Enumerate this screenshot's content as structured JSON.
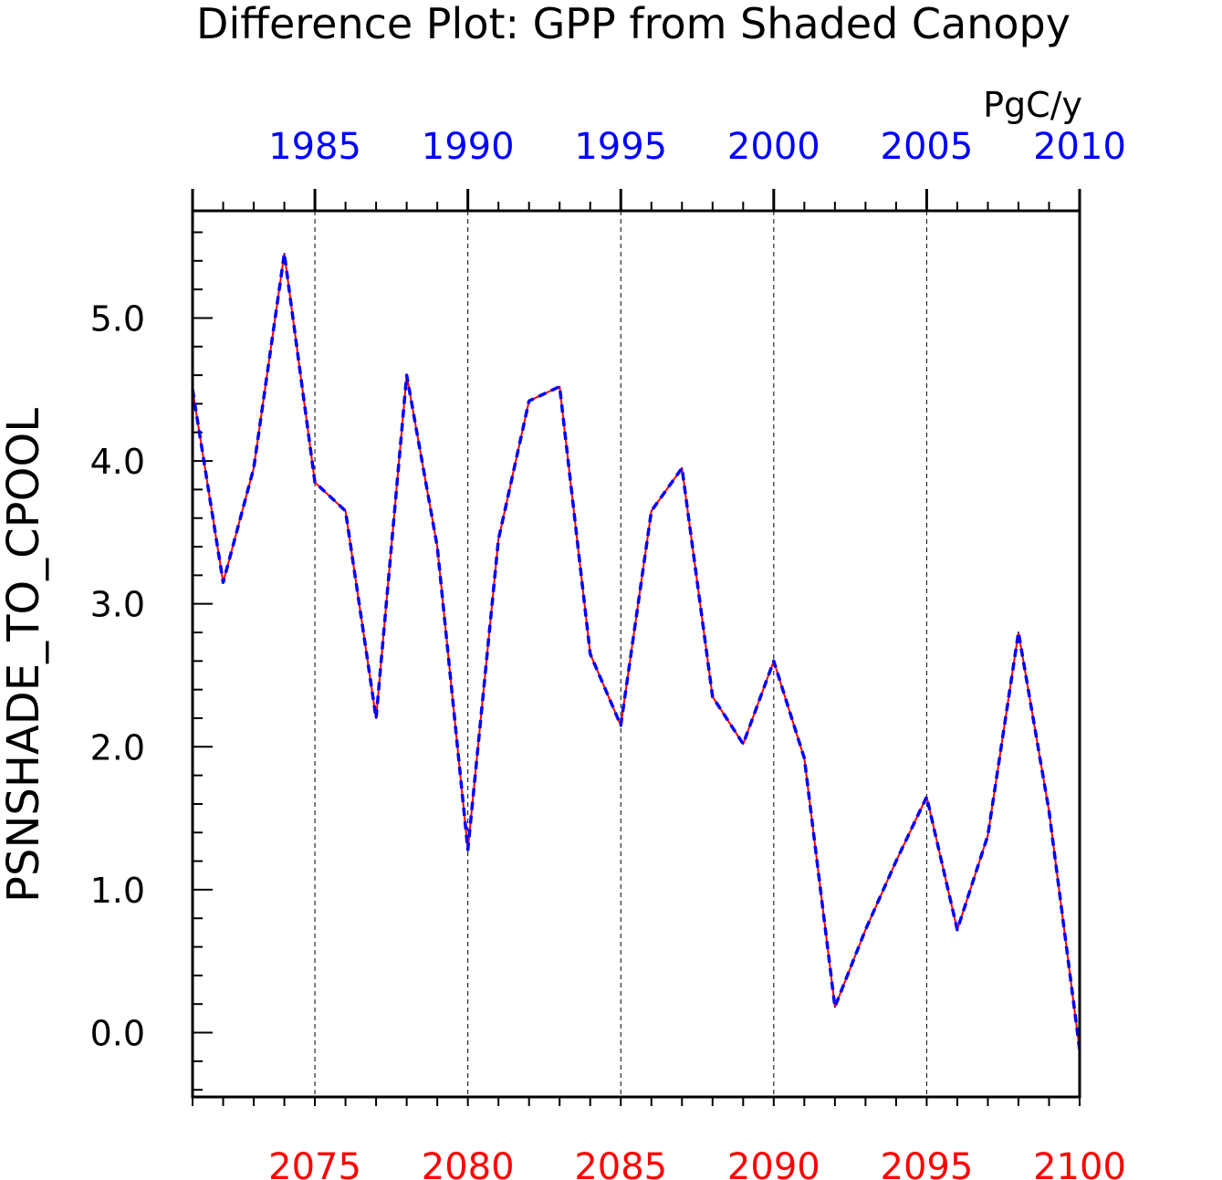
{
  "chart_data": {
    "type": "line",
    "title": "Difference Plot: GPP from Shaded Canopy",
    "units": "PgC/y",
    "ylabel": "PSNSHADE_TO_CPOOL",
    "ylim": [
      -0.45,
      5.75
    ],
    "y_ticks": [
      "0.0",
      "1.0",
      "2.0",
      "3.0",
      "4.0",
      "5.0"
    ],
    "x_bottom": {
      "range": [
        2071,
        2100
      ],
      "tick_labels": [
        "2075",
        "2080",
        "2085",
        "2090",
        "2095",
        "2100"
      ],
      "color": "#ff0000"
    },
    "x_top": {
      "range": [
        1981,
        2010
      ],
      "tick_labels": [
        "1985",
        "1990",
        "1995",
        "2000",
        "2005",
        "2010"
      ],
      "color": "#0000ff"
    },
    "grid": "dashed vertical lines at labelled bottom years",
    "series": [
      {
        "color": "#ff0000",
        "style": "solid",
        "x": [
          2071,
          2072,
          2073,
          2074,
          2075,
          2076,
          2077,
          2078,
          2079,
          2080,
          2081,
          2082,
          2083,
          2084,
          2085,
          2086,
          2087,
          2088,
          2089,
          2090,
          2091,
          2092,
          2093,
          2094,
          2095,
          2096,
          2097,
          2098,
          2099,
          2100
        ],
        "values": [
          4.5,
          3.15,
          3.95,
          5.45,
          3.85,
          3.65,
          2.2,
          4.6,
          3.4,
          1.28,
          3.45,
          4.42,
          4.52,
          2.65,
          2.15,
          3.65,
          3.95,
          2.35,
          2.02,
          2.6,
          1.92,
          0.18,
          0.72,
          1.2,
          1.65,
          0.72,
          1.38,
          2.8,
          1.55,
          -0.12
        ]
      },
      {
        "color": "#0000ff",
        "style": "dashed",
        "x": [
          1981,
          1982,
          1983,
          1984,
          1985,
          1986,
          1987,
          1988,
          1989,
          1990,
          1991,
          1992,
          1993,
          1994,
          1995,
          1996,
          1997,
          1998,
          1999,
          2000,
          2001,
          2002,
          2003,
          2004,
          2005,
          2006,
          2007,
          2008,
          2009,
          2010
        ],
        "values": [
          4.5,
          3.15,
          3.95,
          5.45,
          3.85,
          3.65,
          2.2,
          4.6,
          3.4,
          1.28,
          3.45,
          4.42,
          4.52,
          2.65,
          2.15,
          3.65,
          3.95,
          2.35,
          2.02,
          2.6,
          1.92,
          0.18,
          0.72,
          1.2,
          1.65,
          0.72,
          1.38,
          2.8,
          1.55,
          -0.12
        ]
      }
    ]
  }
}
